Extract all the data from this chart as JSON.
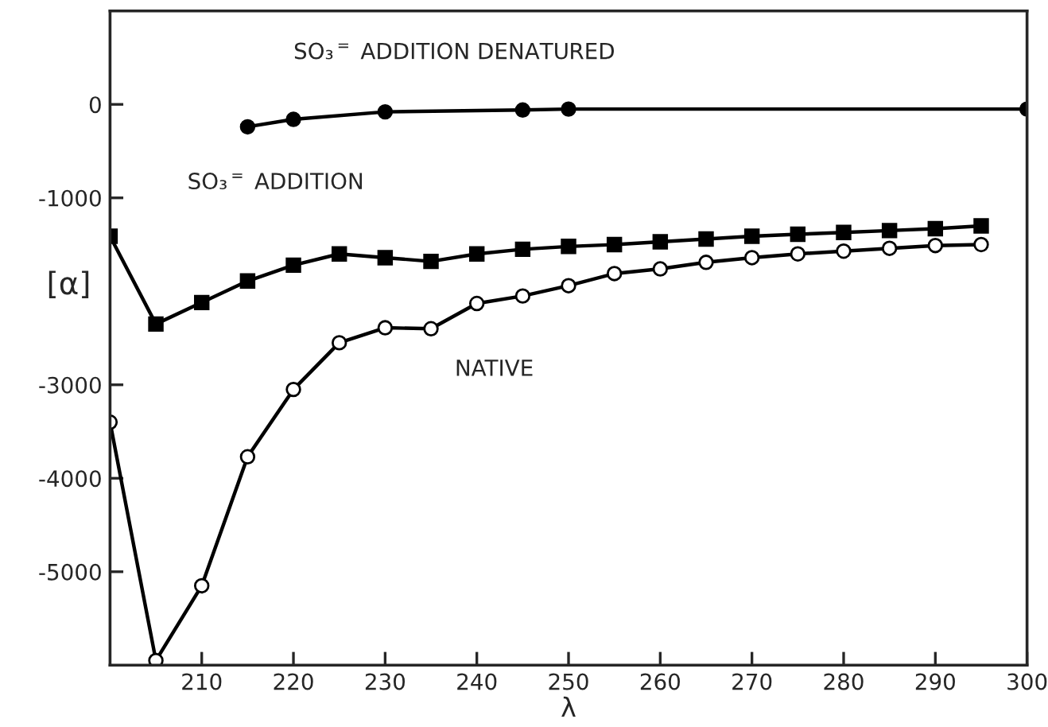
{
  "chart_data": {
    "type": "line",
    "xlabel": "λ",
    "ylabel": "[α]",
    "xlim": [
      200,
      300
    ],
    "ylim": [
      -6000,
      1000
    ],
    "xticks": [
      210,
      220,
      230,
      240,
      250,
      260,
      270,
      280,
      290,
      300
    ],
    "yticks": [
      -5000,
      -4000,
      -3000,
      -1000,
      0
    ],
    "grid": false,
    "legend": false,
    "line_style": "solid",
    "series": [
      {
        "name": "SO₃$^{=}$ ADDITION DENATURED",
        "color": "#000000",
        "marker": "circle",
        "x": [
          215,
          220,
          230,
          245,
          250,
          300
        ],
        "values": [
          -240,
          -160,
          -80,
          -60,
          -50,
          -50
        ]
      },
      {
        "name": "SO₃$^{=}$ ADDITION",
        "color": "#000000",
        "marker": "square",
        "x": [
          200,
          205,
          210,
          215,
          220,
          225,
          230,
          235,
          240,
          245,
          250,
          255,
          260,
          265,
          270,
          275,
          280,
          285,
          290,
          295
        ],
        "values": [
          -1410,
          -2350,
          -2120,
          -1890,
          -1720,
          -1600,
          -1640,
          -1680,
          -1600,
          -1550,
          -1520,
          -1500,
          -1470,
          -1440,
          -1410,
          -1390,
          -1370,
          -1350,
          -1330,
          -1300
        ]
      },
      {
        "name": "NATIVE",
        "color": "#000000",
        "marker": "circle",
        "x": [
          200,
          205,
          210,
          215,
          220,
          225,
          230,
          235,
          240,
          245,
          250,
          255,
          260,
          265,
          270,
          275,
          280,
          285,
          290,
          295
        ],
        "values": [
          -3400,
          -5950,
          -5150,
          -3770,
          -3050,
          -2550,
          -2390,
          -2400,
          -2130,
          -2050,
          -1940,
          -1810,
          -1760,
          -1690,
          -1640,
          -1600,
          -1570,
          -1540,
          -1510,
          -1500
        ]
      }
    ]
  }
}
